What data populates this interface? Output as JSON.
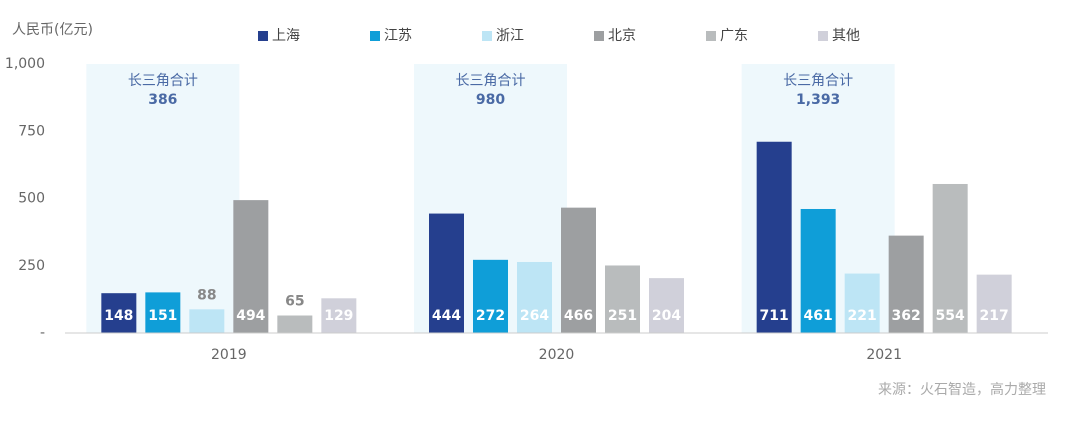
{
  "chart_data": {
    "type": "bar",
    "y_label": "人民币(亿元)",
    "categories": [
      "2019",
      "2020",
      "2021"
    ],
    "series": [
      {
        "name": "上海",
        "color": "#253f8e",
        "values": [
          148,
          444,
          711
        ]
      },
      {
        "name": "江苏",
        "color": "#0f9ed8",
        "values": [
          151,
          272,
          461
        ]
      },
      {
        "name": "浙江",
        "color": "#bde5f5",
        "values": [
          88,
          264,
          221
        ]
      },
      {
        "name": "北京",
        "color": "#9d9fa1",
        "values": [
          494,
          466,
          362
        ]
      },
      {
        "name": "广东",
        "color": "#b9bcbd",
        "values": [
          65,
          251,
          554
        ]
      },
      {
        "name": "其他",
        "color": "#d0d0da",
        "values": [
          129,
          204,
          217
        ]
      }
    ],
    "ylim": [
      0,
      1000
    ],
    "yticks": [
      {
        "value": 0,
        "label": "-"
      },
      250,
      500,
      750,
      {
        "value": 1000,
        "label": "1,000"
      }
    ],
    "highlight": {
      "label": "长三角合计",
      "color": "#eef8fc",
      "values": [
        386,
        980,
        1393
      ],
      "value_labels": [
        "386",
        "980",
        "1,393"
      ]
    },
    "source": "来源：火石智造，高力整理"
  }
}
